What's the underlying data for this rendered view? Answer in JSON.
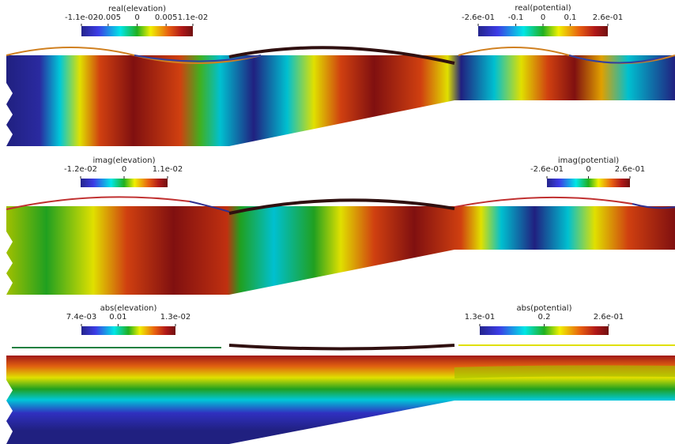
{
  "panels": [
    {
      "colorbars": [
        {
          "title": "real(elevation)",
          "ticks": [
            "-1.1e-02",
            "-0.005",
            "0",
            "0.005",
            "1.1e-02"
          ]
        },
        {
          "title": "real(potential)",
          "ticks": [
            "-2.6e-01",
            "-0.1",
            "0",
            "0.1",
            "2.6e-01"
          ]
        }
      ]
    },
    {
      "colorbars": [
        {
          "title": "imag(elevation)",
          "ticks": [
            "-1.2e-02",
            "0",
            "1.1e-02"
          ]
        },
        {
          "title": "imag(potential)",
          "ticks": [
            "-2.6e-01",
            "0",
            "2.6e-01"
          ]
        }
      ]
    },
    {
      "colorbars": [
        {
          "title": "abs(elevation)",
          "ticks": [
            "7.4e-03",
            "0.01",
            "1.3e-02"
          ]
        },
        {
          "title": "abs(potential)",
          "ticks": [
            "1.3e-01",
            "0.2",
            "2.6e-01"
          ]
        }
      ]
    }
  ]
}
